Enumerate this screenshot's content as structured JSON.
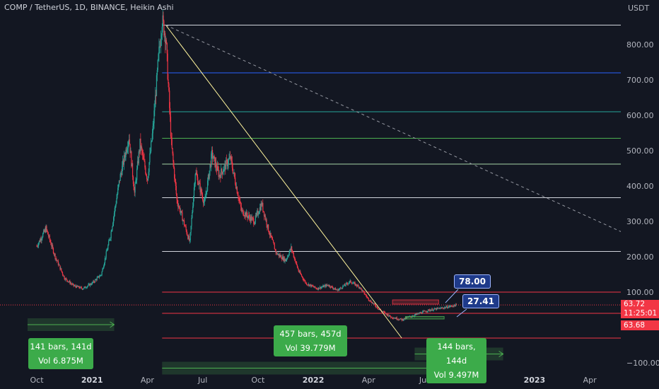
{
  "header": {
    "title": "COMP / TetherUS, 1D, BINANCE, Heikin Ashi"
  },
  "chart_data": {
    "type": "candlestick",
    "currency_label": "USDT",
    "y_ticks": [
      "800.00",
      "700.00",
      "600.00",
      "500.00",
      "400.00",
      "300.00",
      "200.00",
      "100.00",
      "−100.00"
    ],
    "y_tick_values": [
      800,
      700,
      600,
      500,
      400,
      300,
      200,
      100,
      -100
    ],
    "x_ticks": [
      "Oct",
      "2021",
      "Apr",
      "Jul",
      "Oct",
      "2022",
      "Apr",
      "Jul",
      "Oct",
      "2023",
      "Apr"
    ],
    "x_tick_bold": [
      false,
      true,
      false,
      false,
      false,
      true,
      false,
      false,
      false,
      true,
      false
    ],
    "x_tick_months": [
      0,
      3,
      6,
      9,
      12,
      15,
      18,
      21,
      24,
      27,
      30
    ],
    "ylim": [
      -120,
      960
    ],
    "price_path": [
      [
        0,
        230
      ],
      [
        0.5,
        280
      ],
      [
        1,
        200
      ],
      [
        1.5,
        140
      ],
      [
        2,
        118
      ],
      [
        2.5,
        110
      ],
      [
        3,
        125
      ],
      [
        3.5,
        150
      ],
      [
        4,
        260
      ],
      [
        4.5,
        420
      ],
      [
        5,
        540
      ],
      [
        5.3,
        380
      ],
      [
        5.6,
        520
      ],
      [
        6,
        420
      ],
      [
        6.3,
        560
      ],
      [
        6.6,
        760
      ],
      [
        6.8,
        870
      ],
      [
        7,
        820
      ],
      [
        7.3,
        520
      ],
      [
        7.6,
        360
      ],
      [
        7.9,
        310
      ],
      [
        8.3,
        240
      ],
      [
        8.6,
        440
      ],
      [
        9.1,
        350
      ],
      [
        9.5,
        490
      ],
      [
        9.9,
        430
      ],
      [
        10.5,
        480
      ],
      [
        11.1,
        330
      ],
      [
        11.8,
        300
      ],
      [
        12.2,
        350
      ],
      [
        12.6,
        270
      ],
      [
        13,
        210
      ],
      [
        13.5,
        190
      ],
      [
        13.8,
        225
      ],
      [
        14.2,
        160
      ],
      [
        14.6,
        125
      ],
      [
        15.2,
        110
      ],
      [
        15.8,
        120
      ],
      [
        16.3,
        105
      ],
      [
        17,
        130
      ],
      [
        17.5,
        115
      ],
      [
        18,
        80
      ],
      [
        18.6,
        50
      ],
      [
        19.2,
        30
      ],
      [
        19.8,
        22
      ],
      [
        20.5,
        35
      ],
      [
        21.2,
        48
      ],
      [
        22,
        55
      ],
      [
        22.8,
        63.72
      ]
    ],
    "horizontal_levels": [
      {
        "value": 855,
        "color": "#d1d4dc"
      },
      {
        "value": 720,
        "color": "#2962ff"
      },
      {
        "value": 610,
        "color": "#26a69a"
      },
      {
        "value": 535,
        "color": "#4caf50"
      },
      {
        "value": 462,
        "color": "#a5d6a7"
      },
      {
        "value": 367,
        "color": "#d1d4dc"
      },
      {
        "value": 215,
        "color": "#d1d4dc"
      },
      {
        "value": 100,
        "color": "#f23645"
      },
      {
        "value": 40,
        "color": "#f23645"
      },
      {
        "value": -30,
        "color": "#f23645"
      }
    ],
    "dotted_level": {
      "value": 63.72,
      "color": "#f23645"
    },
    "trendlines": [
      {
        "from": [
          7.0,
          855
        ],
        "to": [
          19.8,
          -30
        ],
        "color": "#fff59d",
        "dashed": false
      },
      {
        "from": [
          7.0,
          855
        ],
        "to": [
          33.0,
          240
        ],
        "color": "#9598a1",
        "dashed": true
      }
    ],
    "range_zones": [
      {
        "from": [
          19.3,
          78
        ],
        "to": [
          21.8,
          66
        ],
        "color": "#f23645"
      },
      {
        "from": [
          20.0,
          24
        ],
        "to": [
          22.1,
          31
        ],
        "color": "#4caf50"
      }
    ],
    "date_ranges": [
      {
        "from_month": -0.5,
        "to_month": 4.2,
        "value": 8
      },
      {
        "from_month": 6.8,
        "to_month": 21.8,
        "value": -115
      },
      {
        "from_month": 20.5,
        "to_month": 25.3,
        "value": -75
      }
    ]
  },
  "annotations": {
    "measure_1": {
      "bars": "141 bars, 141d",
      "vol": "Vol 6.875M"
    },
    "measure_2": {
      "bars": "457 bars, 457d",
      "vol": "Vol 39.779M"
    },
    "measure_3": {
      "bars": "144 bars, 144d",
      "vol": "Vol 9.497M"
    },
    "price_tag_upper": "78.00",
    "price_tag_lower": "27.41"
  },
  "last_price": {
    "price": "63.72",
    "countdown": "11:25:01",
    "secondary": "63.68"
  },
  "colors": {
    "up": "#26a69a",
    "down": "#f23645",
    "background": "#131722"
  }
}
